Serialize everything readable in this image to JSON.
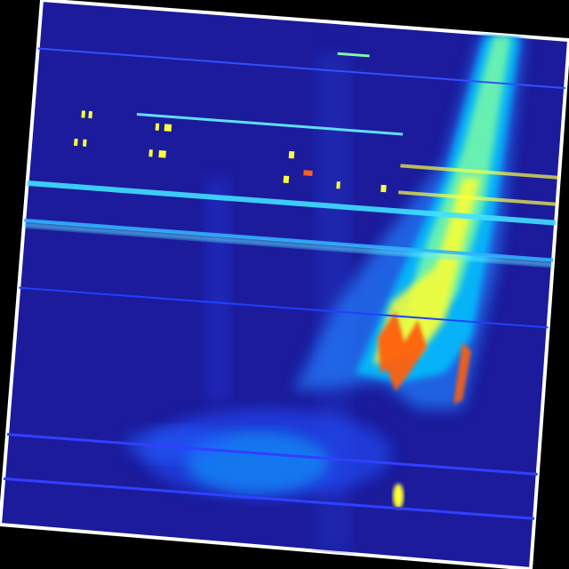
{
  "image": {
    "kind": "rotated jet-colormap intensity map",
    "colormap": [
      "#1b1b9c",
      "#2040ff",
      "#00c8ff",
      "#80ffa0",
      "#ffff00",
      "#ff8000",
      "#e01000"
    ],
    "background_color": "#1b1b9c",
    "frame_color": "#ffffff",
    "outer_color": "#000000"
  }
}
